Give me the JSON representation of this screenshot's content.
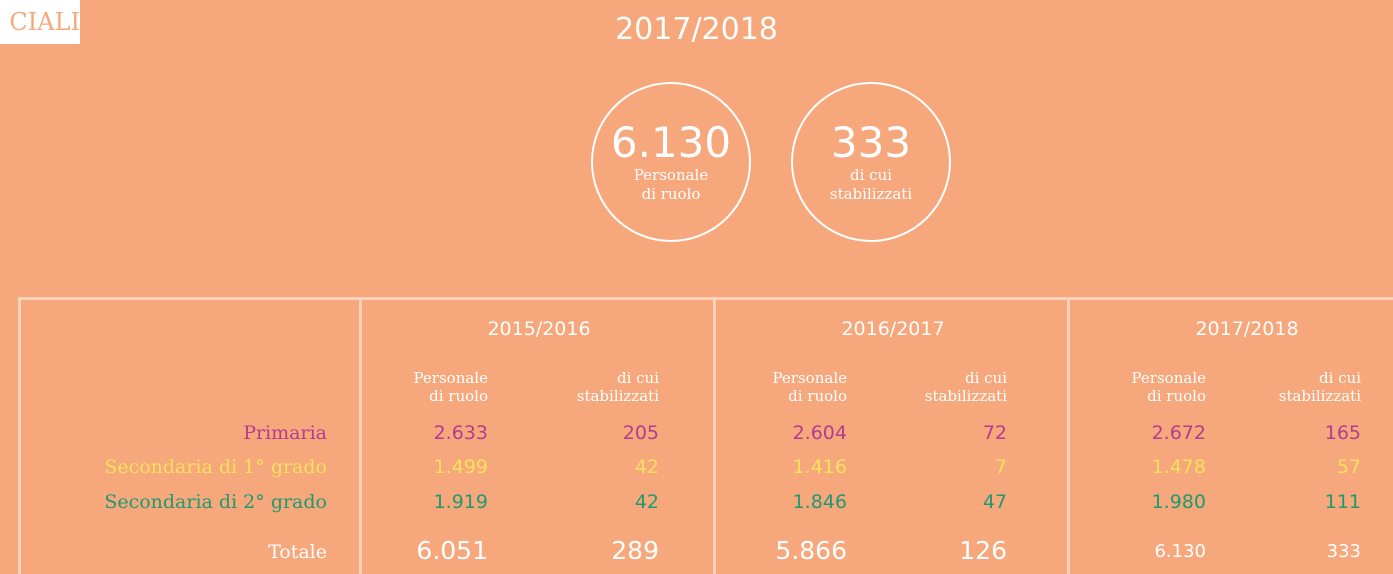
{
  "header": {
    "tag": "CIALI",
    "title": "2017/2018"
  },
  "highlights": [
    {
      "value": "6.130",
      "label": [
        "Personale",
        "di ruolo"
      ]
    },
    {
      "value": "333",
      "label": [
        "di cui",
        "stabilizzati"
      ]
    }
  ],
  "table": {
    "years": [
      "2015/2016",
      "2016/2017",
      "2017/2018"
    ],
    "subheaders": [
      [
        "Personale",
        "di ruolo"
      ],
      [
        "di cui",
        "stabilizzati"
      ]
    ],
    "rows": [
      {
        "label": "Primaria",
        "values": [
          "2.633",
          "205",
          "2.604",
          "72",
          "2.672",
          "165"
        ]
      },
      {
        "label": "Secondaria di 1° grado",
        "values": [
          "1.499",
          "42",
          "1.416",
          "7",
          "1.478",
          "57"
        ]
      },
      {
        "label": "Secondaria di 2° grado",
        "values": [
          "1.919",
          "42",
          "1.846",
          "47",
          "1.980",
          "111"
        ]
      },
      {
        "label": "Totale",
        "values": [
          "6.051",
          "289",
          "5.866",
          "126",
          "6.130",
          "333"
        ]
      }
    ]
  }
}
